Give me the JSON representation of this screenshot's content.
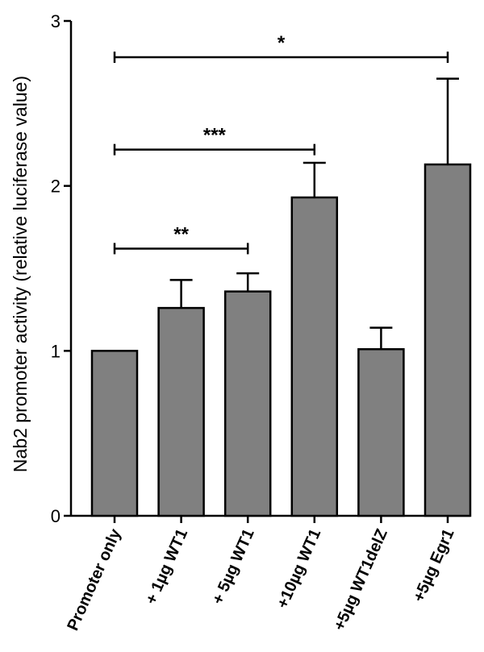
{
  "chart_data": {
    "type": "bar",
    "ylabel": "Nab2 promoter activity (relative luciferase value)",
    "ylim": [
      0,
      3
    ],
    "yticks": [
      0,
      1,
      2,
      3
    ],
    "categories": [
      "Promoter only",
      "+ 1µg WT1",
      "+ 5µg WT1",
      "+10µg WT1",
      "+5µg WT1delZ",
      "+5µg Egr1"
    ],
    "values": [
      1.0,
      1.26,
      1.36,
      1.93,
      1.01,
      2.13
    ],
    "errors": [
      0.0,
      0.17,
      0.11,
      0.21,
      0.13,
      0.52
    ],
    "bar_color": "#808080",
    "significance": [
      {
        "from": 0,
        "to": 2,
        "level": 1.62,
        "label": "**"
      },
      {
        "from": 0,
        "to": 3,
        "level": 2.22,
        "label": "***"
      },
      {
        "from": 0,
        "to": 5,
        "level": 2.78,
        "label": "*"
      }
    ]
  }
}
